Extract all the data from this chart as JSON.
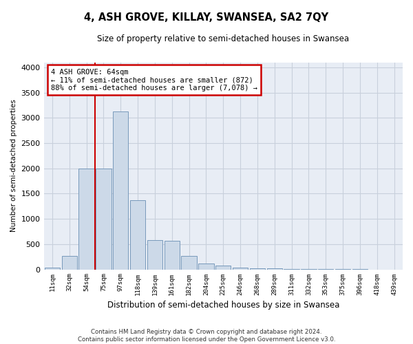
{
  "title": "4, ASH GROVE, KILLAY, SWANSEA, SA2 7QY",
  "subtitle": "Size of property relative to semi-detached houses in Swansea",
  "xlabel": "Distribution of semi-detached houses by size in Swansea",
  "ylabel": "Number of semi-detached properties",
  "bar_color": "#ccd9e8",
  "bar_edge_color": "#7799bb",
  "grid_color": "#c8d0dc",
  "background_color": "#e8edf5",
  "categories": [
    "11sqm",
    "32sqm",
    "54sqm",
    "75sqm",
    "97sqm",
    "118sqm",
    "139sqm",
    "161sqm",
    "182sqm",
    "204sqm",
    "225sqm",
    "246sqm",
    "268sqm",
    "289sqm",
    "311sqm",
    "332sqm",
    "353sqm",
    "375sqm",
    "396sqm",
    "418sqm",
    "439sqm"
  ],
  "values": [
    30,
    270,
    1990,
    1990,
    3130,
    1370,
    580,
    570,
    265,
    110,
    80,
    28,
    18,
    18,
    5,
    3,
    2,
    1,
    1,
    0,
    0
  ],
  "property_line_x": 2.5,
  "annotation_text_line1": "4 ASH GROVE: 64sqm",
  "annotation_text_line2": "← 11% of semi-detached houses are smaller (872)",
  "annotation_text_line3": "88% of semi-detached houses are larger (7,078) →",
  "vline_color": "#cc0000",
  "annotation_box_edgecolor": "#cc0000",
  "footer_line1": "Contains HM Land Registry data © Crown copyright and database right 2024.",
  "footer_line2": "Contains public sector information licensed under the Open Government Licence v3.0.",
  "ylim": [
    0,
    4100
  ],
  "yticks": [
    0,
    500,
    1000,
    1500,
    2000,
    2500,
    3000,
    3500,
    4000
  ]
}
